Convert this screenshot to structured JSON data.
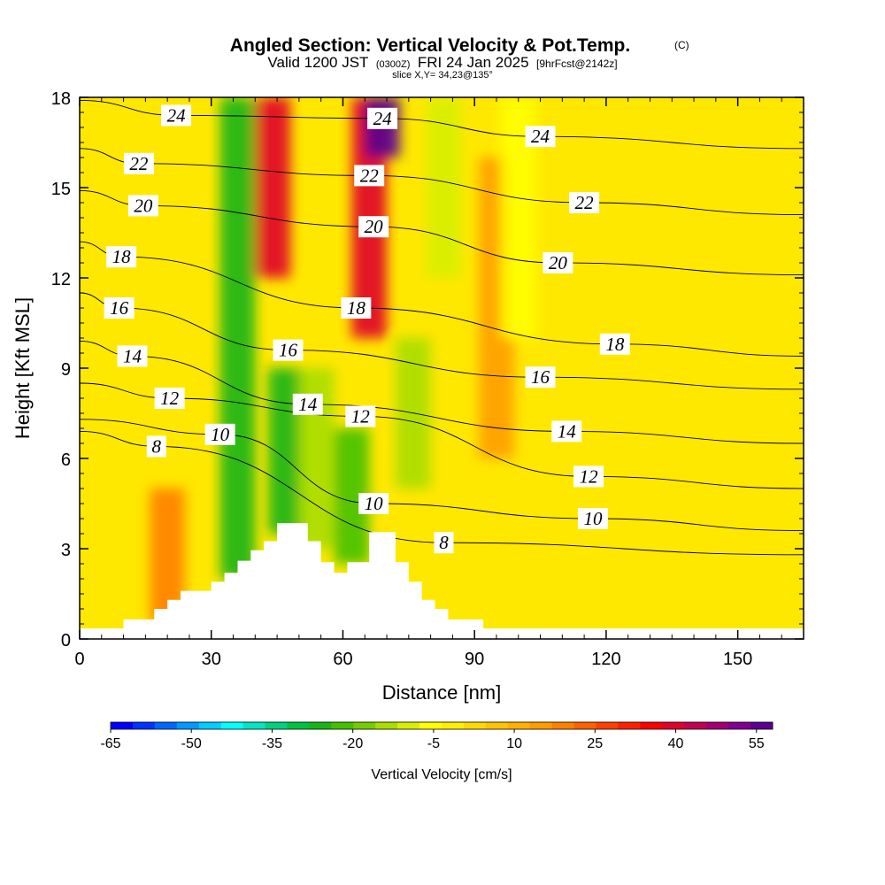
{
  "header": {
    "title": "Angled Section: Vertical Velocity & Pot.Temp.",
    "copyright": "(C)",
    "valid_prefix": "Valid 1200 JST",
    "valid_utc": "(0300Z)",
    "valid_date": "FRI 24 Jan 2025",
    "forecast": "[9hrFcst@2142z]",
    "slice": "slice X,Y= 34,23@135°"
  },
  "chart_data": {
    "type": "heatmap",
    "title": "Angled Section: Vertical Velocity & Pot.Temp.",
    "xlabel": "Distance [nm]",
    "ylabel": "Height [Kft MSL]",
    "xlim": [
      0,
      165
    ],
    "ylim": [
      0,
      18
    ],
    "x_ticks": [
      0,
      30,
      60,
      90,
      120,
      150
    ],
    "y_ticks": [
      0,
      3,
      6,
      9,
      12,
      15,
      18
    ],
    "terrain": [
      [
        0,
        0.35
      ],
      [
        10,
        0.35
      ],
      [
        10,
        0.65
      ],
      [
        17,
        0.65
      ],
      [
        17,
        1.0
      ],
      [
        20,
        1.0
      ],
      [
        20,
        1.3
      ],
      [
        23,
        1.3
      ],
      [
        23,
        1.6
      ],
      [
        30,
        1.6
      ],
      [
        30,
        1.9
      ],
      [
        33,
        1.9
      ],
      [
        33,
        2.2
      ],
      [
        36,
        2.2
      ],
      [
        36,
        2.6
      ],
      [
        39,
        2.6
      ],
      [
        39,
        2.95
      ],
      [
        42,
        2.95
      ],
      [
        42,
        3.25
      ],
      [
        45,
        3.25
      ],
      [
        45,
        3.85
      ],
      [
        52,
        3.85
      ],
      [
        52,
        3.25
      ],
      [
        55,
        3.25
      ],
      [
        55,
        2.55
      ],
      [
        58,
        2.55
      ],
      [
        58,
        2.2
      ],
      [
        61,
        2.2
      ],
      [
        61,
        2.55
      ],
      [
        66,
        2.55
      ],
      [
        66,
        3.55
      ],
      [
        72,
        3.55
      ],
      [
        72,
        2.55
      ],
      [
        75,
        2.55
      ],
      [
        75,
        1.9
      ],
      [
        78,
        1.9
      ],
      [
        78,
        1.3
      ],
      [
        81,
        1.3
      ],
      [
        81,
        1.0
      ],
      [
        84,
        1.0
      ],
      [
        84,
        0.65
      ],
      [
        92,
        0.65
      ],
      [
        92,
        0.35
      ],
      [
        165,
        0.35
      ]
    ],
    "vertical_velocity_features": [
      {
        "x": 36,
        "z": [
          2,
          18
        ],
        "w": -25
      },
      {
        "x": 44,
        "z": [
          12,
          18
        ],
        "w": 40
      },
      {
        "x": 47,
        "z": [
          3.5,
          9
        ],
        "w": -25
      },
      {
        "x": 54,
        "z": [
          3,
          9
        ],
        "w": -15
      },
      {
        "x": 66,
        "z": [
          10,
          18
        ],
        "w": 40
      },
      {
        "x": 69,
        "z": [
          16,
          18
        ],
        "w": 55
      },
      {
        "x": 62,
        "z": [
          2.5,
          7
        ],
        "w": -20
      },
      {
        "x": 76,
        "z": [
          5,
          10
        ],
        "w": -15
      },
      {
        "x": 83,
        "z": [
          12,
          18
        ],
        "w": -10
      },
      {
        "x": 95,
        "z": [
          6,
          16
        ],
        "w": 15
      },
      {
        "x": 100,
        "z": [
          10,
          18
        ],
        "w": -5
      },
      {
        "x": 20,
        "z": [
          0.5,
          5
        ],
        "w": 20
      }
    ],
    "colorbar": {
      "title": "Vertical Velocity [cm/s]",
      "min": -65,
      "max": 58,
      "tick_values": [
        -65,
        -50,
        -35,
        -20,
        -5,
        10,
        25,
        40,
        55
      ],
      "tick_labels": [
        "-65",
        "-50",
        "-35",
        "-20",
        "-5",
        "10",
        "25",
        "40",
        "55"
      ],
      "colors": [
        "#0000ff",
        "#0033ff",
        "#0066ff",
        "#0099ff",
        "#00ccff",
        "#00ffff",
        "#00e6c0",
        "#00d080",
        "#00c040",
        "#18b418",
        "#44c000",
        "#77cc00",
        "#a8dd00",
        "#d8ee00",
        "#ffff00",
        "#ffee00",
        "#ffd800",
        "#ffc400",
        "#ffb000",
        "#ff9c00",
        "#ff8000",
        "#ff6000",
        "#ff4000",
        "#ff2000",
        "#ff0000",
        "#e0002a",
        "#c00050",
        "#a00070",
        "#800090",
        "#5a0090"
      ]
    },
    "potential_temperature_labels": [
      {
        "text": "24",
        "x": 22,
        "z": 17.4
      },
      {
        "text": "24",
        "x": 69,
        "z": 17.3
      },
      {
        "text": "24",
        "x": 105,
        "z": 16.7
      },
      {
        "text": "22",
        "x": 13.5,
        "z": 15.8
      },
      {
        "text": "22",
        "x": 66,
        "z": 15.4
      },
      {
        "text": "22",
        "x": 115,
        "z": 14.5
      },
      {
        "text": "20",
        "x": 14.5,
        "z": 14.4
      },
      {
        "text": "20",
        "x": 67,
        "z": 13.7
      },
      {
        "text": "20",
        "x": 109,
        "z": 12.5
      },
      {
        "text": "18",
        "x": 9.5,
        "z": 12.7
      },
      {
        "text": "18",
        "x": 63,
        "z": 11.0
      },
      {
        "text": "18",
        "x": 122,
        "z": 9.8
      },
      {
        "text": "16",
        "x": 9,
        "z": 11.0
      },
      {
        "text": "16",
        "x": 47.5,
        "z": 9.6
      },
      {
        "text": "16",
        "x": 105,
        "z": 8.7
      },
      {
        "text": "14",
        "x": 12,
        "z": 9.4
      },
      {
        "text": "14",
        "x": 52,
        "z": 7.8
      },
      {
        "text": "14",
        "x": 111,
        "z": 6.9
      },
      {
        "text": "12",
        "x": 20.5,
        "z": 8.0
      },
      {
        "text": "12",
        "x": 64,
        "z": 7.4
      },
      {
        "text": "12",
        "x": 116,
        "z": 5.4
      },
      {
        "text": "10",
        "x": 32,
        "z": 6.8
      },
      {
        "text": "10",
        "x": 67,
        "z": 4.5
      },
      {
        "text": "10",
        "x": 117,
        "z": 4.0
      },
      {
        "text": "8",
        "x": 17.5,
        "z": 6.4
      },
      {
        "text": "8",
        "x": 83,
        "z": 3.2
      }
    ]
  }
}
